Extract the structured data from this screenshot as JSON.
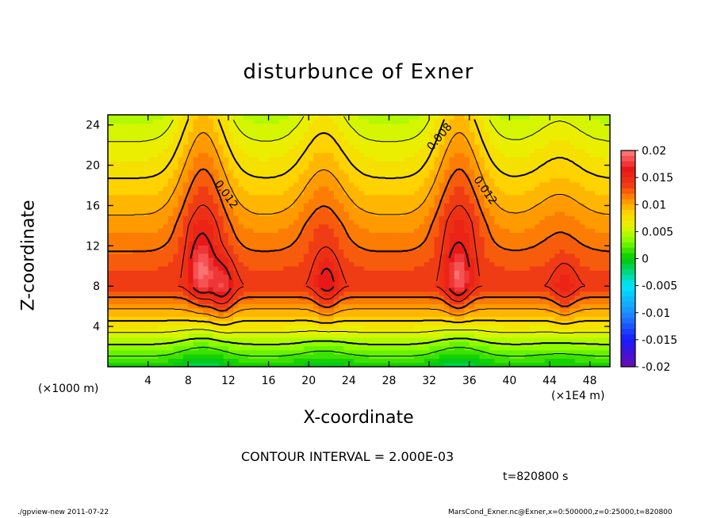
{
  "chart_data": {
    "type": "heatmap",
    "title": "disturbunce of Exner",
    "xlabel": "X-coordinate",
    "ylabel": "Z-coordinate",
    "x_unit_left": "(×1000 m)",
    "x_unit_right": "(×1E4 m)",
    "xlim": [
      0,
      50
    ],
    "ylim": [
      0,
      25
    ],
    "x_ticks": [
      "4",
      "8",
      "12",
      "16",
      "20",
      "24",
      "28",
      "32",
      "36",
      "40",
      "44",
      "48"
    ],
    "x_tick_values": [
      4,
      8,
      12,
      16,
      20,
      24,
      28,
      32,
      36,
      40,
      44,
      48
    ],
    "y_ticks": [
      "4",
      "8",
      "12",
      "16",
      "20",
      "24"
    ],
    "y_tick_values": [
      4,
      8,
      12,
      16,
      20,
      24
    ],
    "colorbar": {
      "labels": [
        "0.02",
        "0.015",
        "0.01",
        "0.005",
        "0",
        "-0.005",
        "-0.01",
        "-0.015",
        "-0.02"
      ],
      "values": [
        0.02,
        0.015,
        0.01,
        0.005,
        0,
        -0.005,
        -0.01,
        -0.015,
        -0.02
      ],
      "range": [
        -0.02,
        0.02
      ]
    },
    "contour_labels": [
      {
        "text": "0.008",
        "x": 33.3,
        "y": 22.6
      },
      {
        "text": "0.012",
        "x": 11.5,
        "y": 16.9
      },
      {
        "text": "0.012",
        "x": 37.3,
        "y": 17.3
      }
    ],
    "field_peaks": [
      {
        "x": 9.3,
        "y": 9.5,
        "value": 0.019
      },
      {
        "x": 11.4,
        "y": 7.8,
        "value": 0.018
      },
      {
        "x": 21.8,
        "y": 8.2,
        "value": 0.017
      },
      {
        "x": 34.9,
        "y": 8.8,
        "value": 0.019
      },
      {
        "x": 45.5,
        "y": 7.6,
        "value": 0.016
      }
    ],
    "contour_interval": 0.002,
    "grid": false
  },
  "annotations": {
    "contour_interval_text": "CONTOUR INTERVAL = 2.000E-03",
    "time_text": "t=820800  s",
    "footer_left": "./gpview-new   2011-07-22",
    "footer_right": "MarsCond_Exner.nc@Exner,x=0:500000,z=0:25000,t=820800"
  },
  "colors": {
    "scale": [
      "#6a0dad",
      "#1a1aff",
      "#1e90ff",
      "#00e5ff",
      "#00c800",
      "#7cfc00",
      "#ffff00",
      "#ffb000",
      "#ff5000",
      "#e81818",
      "#ff8080"
    ]
  }
}
